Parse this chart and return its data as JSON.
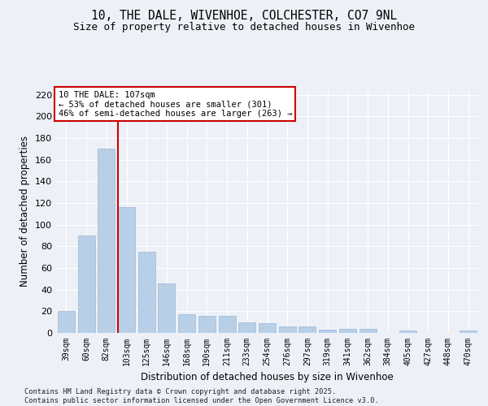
{
  "title1": "10, THE DALE, WIVENHOE, COLCHESTER, CO7 9NL",
  "title2": "Size of property relative to detached houses in Wivenhoe",
  "xlabel": "Distribution of detached houses by size in Wivenhoe",
  "ylabel": "Number of detached properties",
  "categories": [
    "39sqm",
    "60sqm",
    "82sqm",
    "103sqm",
    "125sqm",
    "146sqm",
    "168sqm",
    "190sqm",
    "211sqm",
    "233sqm",
    "254sqm",
    "276sqm",
    "297sqm",
    "319sqm",
    "341sqm",
    "362sqm",
    "384sqm",
    "405sqm",
    "427sqm",
    "448sqm",
    "470sqm"
  ],
  "values": [
    20,
    90,
    170,
    116,
    75,
    46,
    17,
    16,
    16,
    10,
    9,
    6,
    6,
    3,
    4,
    4,
    0,
    2,
    0,
    0,
    2
  ],
  "bar_color": "#b8cfe8",
  "bar_edge_color": "#9ab8d8",
  "vline_x_index": 3,
  "vline_color": "#cc0000",
  "annotation_title": "10 THE DALE: 107sqm",
  "annotation_line2": "← 53% of detached houses are smaller (301)",
  "annotation_line3": "46% of semi-detached houses are larger (263) →",
  "annotation_box_color": "#ffffff",
  "annotation_box_edge": "#cc0000",
  "ylim": [
    0,
    225
  ],
  "yticks": [
    0,
    20,
    40,
    60,
    80,
    100,
    120,
    140,
    160,
    180,
    200,
    220
  ],
  "footer1": "Contains HM Land Registry data © Crown copyright and database right 2025.",
  "footer2": "Contains public sector information licensed under the Open Government Licence v3.0.",
  "bg_color": "#edf1f7",
  "plot_bg_color": "#edf1f7"
}
